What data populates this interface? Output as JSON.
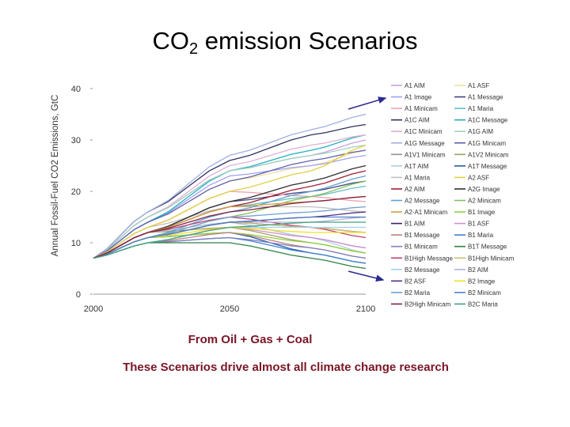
{
  "title": {
    "main": "CO",
    "sub": "2",
    "rest": " emission Scenarios"
  },
  "captions": {
    "line1": "From Oil + Gas + Coal",
    "line2": "These Scenarios drive almost all climate change research"
  },
  "chart_data": {
    "type": "line",
    "title": "",
    "xlabel": "",
    "ylabel": "Annual Fossil-Fuel CO2 Emissions, GtC",
    "xlim": [
      2000,
      2100
    ],
    "ylim": [
      0,
      40
    ],
    "x_ticks": [
      2000,
      2050,
      2100
    ],
    "y_ticks": [
      0,
      10,
      20,
      30,
      40
    ],
    "grid": false,
    "legend_position": "right",
    "x": [
      2000,
      2020,
      2050,
      2080,
      2100
    ],
    "series": [
      {
        "name": "A1 AIM",
        "color": "#c8a0e0",
        "values": [
          7,
          15,
          24,
          27,
          30
        ]
      },
      {
        "name": "A1 ASF",
        "color": "#f0e0a0",
        "values": [
          7,
          14,
          22,
          25,
          28
        ]
      },
      {
        "name": "A1 Image",
        "color": "#a0a0f0",
        "values": [
          7,
          14,
          23,
          25,
          27
        ]
      },
      {
        "name": "A1 Message",
        "color": "#404080",
        "values": [
          7,
          12,
          18,
          20,
          22
        ]
      },
      {
        "name": "A1 Minicam",
        "color": "#f0a0b0",
        "values": [
          7,
          13,
          20,
          19,
          18
        ]
      },
      {
        "name": "A1 Maria",
        "color": "#60c0c0",
        "values": [
          7,
          12,
          17,
          19,
          21
        ]
      },
      {
        "name": "A1C AIM",
        "color": "#303060",
        "values": [
          7,
          16,
          26,
          31,
          33
        ]
      },
      {
        "name": "A1C Message",
        "color": "#20b0c0",
        "values": [
          7,
          14,
          24,
          28,
          31
        ]
      },
      {
        "name": "A1C Minicam",
        "color": "#e0b0d0",
        "values": [
          7,
          15,
          25,
          29,
          31
        ]
      },
      {
        "name": "A1G AIM",
        "color": "#a0d0c0",
        "values": [
          7,
          15,
          24,
          27,
          29
        ]
      },
      {
        "name": "A1G Message",
        "color": "#a0b0e0",
        "values": [
          7,
          16,
          27,
          32,
          35
        ]
      },
      {
        "name": "A1G Minicam",
        "color": "#6060b0",
        "values": [
          7,
          14,
          22,
          26,
          28
        ]
      },
      {
        "name": "A1V1 Minicam",
        "color": "#9090a0",
        "values": [
          7,
          12,
          14,
          11,
          9
        ]
      },
      {
        "name": "A1V2 Minicam",
        "color": "#a0a060",
        "values": [
          7,
          12,
          13,
          10,
          8
        ]
      },
      {
        "name": "A1T AIM",
        "color": "#b0d0e0",
        "values": [
          7,
          12,
          14,
          11,
          8
        ]
      },
      {
        "name": "A1T Message",
        "color": "#2060a0",
        "values": [
          7,
          11,
          12,
          8,
          6
        ]
      },
      {
        "name": "A1 Maria ",
        "color": "#c0c0c0",
        "values": [
          7,
          13,
          17,
          17,
          16
        ]
      },
      {
        "name": "A2 ASF",
        "color": "#e0d040",
        "values": [
          7,
          13,
          20,
          24,
          29
        ]
      },
      {
        "name": "A2 AIM",
        "color": "#a02030",
        "values": [
          7,
          12,
          17,
          21,
          24
        ]
      },
      {
        "name": "A2G Image",
        "color": "#303030",
        "values": [
          7,
          12,
          18,
          22,
          25
        ]
      },
      {
        "name": "A2 Message",
        "color": "#60a0d0",
        "values": [
          7,
          11,
          16,
          20,
          23
        ]
      },
      {
        "name": "A2 Minicam",
        "color": "#80c060",
        "values": [
          7,
          11,
          15,
          19,
          22
        ]
      },
      {
        "name": "A2-A1 Minicam",
        "color": "#d0a040",
        "values": [
          7,
          12,
          17,
          18,
          19
        ]
      },
      {
        "name": "B1 Image",
        "color": "#90d040",
        "values": [
          7,
          11,
          12,
          10,
          8
        ]
      },
      {
        "name": "B1 AIM",
        "color": "#402060",
        "values": [
          7,
          11,
          14,
          13,
          12
        ]
      },
      {
        "name": "B1 ASF",
        "color": "#d090d0",
        "values": [
          7,
          10,
          13,
          11,
          9
        ]
      },
      {
        "name": "B1 Message",
        "color": "#c08080",
        "values": [
          7,
          10,
          12,
          9,
          7
        ]
      },
      {
        "name": "B1 Maria",
        "color": "#4080d0",
        "values": [
          7,
          10,
          11,
          8,
          6
        ]
      },
      {
        "name": "B1 Minicam",
        "color": "#8080c0",
        "values": [
          7,
          10,
          11,
          9,
          7
        ]
      },
      {
        "name": "B1T Message",
        "color": "#308040",
        "values": [
          7,
          10,
          10,
          7,
          5
        ]
      },
      {
        "name": "B1High Message",
        "color": "#c04070",
        "values": [
          7,
          12,
          15,
          13,
          11
        ]
      },
      {
        "name": "B1High Minicam",
        "color": "#d0c070",
        "values": [
          7,
          11,
          14,
          13,
          12
        ]
      },
      {
        "name": "B2 Message",
        "color": "#a0d0f0",
        "values": [
          7,
          10,
          13,
          13,
          13
        ]
      },
      {
        "name": "B2 AIM",
        "color": "#b0b0e0",
        "values": [
          7,
          11,
          14,
          14,
          15
        ]
      },
      {
        "name": "B2 ASF",
        "color": "#503080",
        "values": [
          7,
          11,
          14,
          15,
          16
        ]
      },
      {
        "name": "B2 Image",
        "color": "#f0e020",
        "values": [
          7,
          11,
          13,
          12,
          12
        ]
      },
      {
        "name": "B2 Maria",
        "color": "#70a0d0",
        "values": [
          7,
          11,
          15,
          16,
          17
        ]
      },
      {
        "name": "B2 Minicam",
        "color": "#5080c0",
        "values": [
          7,
          11,
          14,
          15,
          15
        ]
      },
      {
        "name": "B2High Minicam",
        "color": "#802040",
        "values": [
          7,
          12,
          16,
          18,
          19
        ]
      },
      {
        "name": "B2C Maria",
        "color": "#40a080",
        "values": [
          7,
          10,
          13,
          14,
          14
        ]
      }
    ]
  }
}
